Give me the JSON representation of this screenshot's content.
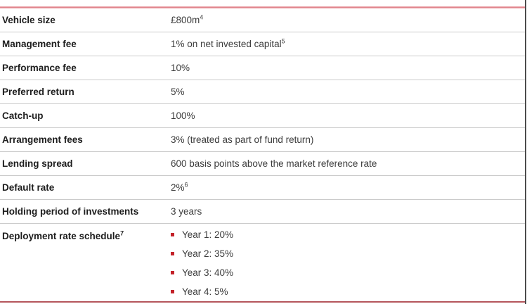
{
  "colors": {
    "top_rule": "#dd7a82",
    "bottom_rule": "#b5565c",
    "row_separator": "#cbcbcb",
    "bullet": "#c3222a",
    "label_text": "#1d1d1d",
    "value_text": "#3c3c3c",
    "edge_bar": "#4d4d4d"
  },
  "table": {
    "rows": [
      {
        "label": "Vehicle size",
        "value": "£800m",
        "value_sup": "4"
      },
      {
        "label": "Management fee",
        "value": "1% on net invested capital",
        "value_sup": "5"
      },
      {
        "label": "Performance fee",
        "value": "10%"
      },
      {
        "label": "Preferred return",
        "value": "5%"
      },
      {
        "label": "Catch-up",
        "value": "100%"
      },
      {
        "label": "Arrangement fees",
        "value": "3% (treated as part of fund return)"
      },
      {
        "label": "Lending spread",
        "value": "600 basis points above the market reference rate"
      },
      {
        "label": "Default rate",
        "value": "2%",
        "value_sup": "6"
      },
      {
        "label": "Holding period of investments",
        "value": "3 years"
      }
    ],
    "list_row": {
      "label": "Deployment rate schedule",
      "label_sup": "7",
      "items": [
        "Year 1: 20%",
        "Year 2: 35%",
        "Year 3: 40%",
        "Year 4: 5%"
      ]
    }
  }
}
